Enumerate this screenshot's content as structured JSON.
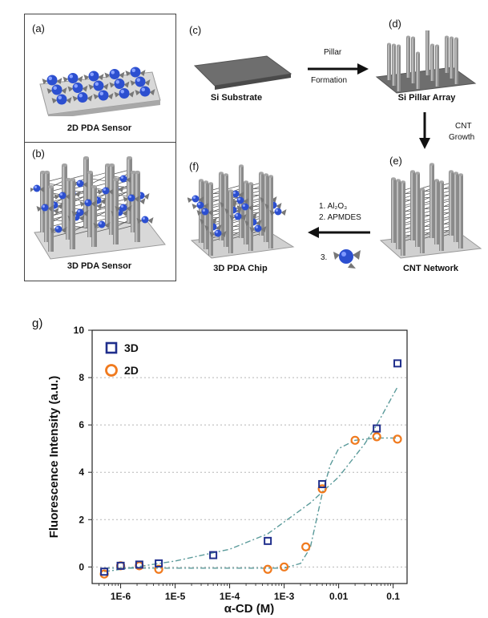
{
  "panels": {
    "a": {
      "label": "(a)",
      "caption": "2D PDA Sensor"
    },
    "b": {
      "label": "(b)",
      "caption": "3D PDA Sensor"
    },
    "c": {
      "label": "(c)",
      "caption": "Si Substrate"
    },
    "d": {
      "label": "(d)",
      "caption": "Si Pillar Array"
    },
    "e": {
      "label": "(e)",
      "caption": "CNT Network"
    },
    "f": {
      "label": "(f)",
      "caption": "3D PDA Chip"
    }
  },
  "arrows": {
    "c_to_d": [
      "Pillar",
      "Formation"
    ],
    "d_to_e": [
      "CNT",
      "Growth"
    ],
    "e_to_f": {
      "step1": "1. Al₂O₃",
      "step2": "2. APMDES",
      "step3": "3."
    }
  },
  "colors": {
    "s3d": "#1f2e8c",
    "s2d": "#f07a1e",
    "fit": "#5a9a9a",
    "sphere": "#2c4fd0",
    "pillar": "#8a8a8a",
    "plate": "#d8d8d8"
  },
  "chart_data": {
    "panel_label": "g)",
    "type": "scatter",
    "xlabel": "α-CD (M)",
    "ylabel": "Fluorescence Intensity  (a.u.)",
    "xscale": "log",
    "xlim": [
      3e-07,
      0.18
    ],
    "ylim": [
      -0.7,
      10
    ],
    "yticks": [
      0,
      2,
      4,
      6,
      8,
      10
    ],
    "xticks": [
      {
        "v": 1e-06,
        "label": "1E-6"
      },
      {
        "v": 1e-05,
        "label": "1E-5"
      },
      {
        "v": 0.0001,
        "label": "1E-4"
      },
      {
        "v": 0.001,
        "label": "1E-3"
      },
      {
        "v": 0.01,
        "label": "0.01"
      },
      {
        "v": 0.1,
        "label": "0.1"
      }
    ],
    "grid": "horizontal dotted",
    "legend": "top-left",
    "series": [
      {
        "name": "3D",
        "marker": "square",
        "x": [
          5e-07,
          1e-06,
          2.2e-06,
          5e-06,
          5e-05,
          0.0005,
          0.005,
          0.05,
          0.12
        ],
        "y": [
          -0.2,
          0.05,
          0.1,
          0.15,
          0.5,
          1.1,
          3.5,
          5.85,
          8.6
        ]
      },
      {
        "name": "2D",
        "marker": "circle",
        "x": [
          5e-07,
          1e-06,
          2.2e-06,
          5e-06,
          0.0005,
          0.001,
          0.0025,
          0.005,
          0.02,
          0.05,
          0.12
        ],
        "y": [
          -0.3,
          0.05,
          0.05,
          -0.1,
          -0.1,
          0.0,
          0.85,
          3.3,
          5.35,
          5.5,
          5.4
        ]
      }
    ],
    "fit_3d": {
      "x": [
        5e-07,
        1e-06,
        1e-05,
        0.0001,
        0.0005,
        0.001,
        0.003,
        0.01,
        0.03,
        0.05,
        0.12
      ],
      "y": [
        -0.2,
        -0.1,
        0.25,
        0.75,
        1.4,
        1.9,
        2.7,
        3.8,
        5.2,
        6.0,
        7.6
      ]
    },
    "fit_2d": {
      "x": [
        5e-07,
        1e-05,
        0.001,
        0.002,
        0.003,
        0.004,
        0.005,
        0.007,
        0.01,
        0.02,
        0.05,
        0.12
      ],
      "y": [
        -0.05,
        -0.05,
        -0.05,
        0.15,
        0.8,
        2.1,
        3.1,
        4.3,
        5.0,
        5.35,
        5.45,
        5.45
      ]
    }
  }
}
